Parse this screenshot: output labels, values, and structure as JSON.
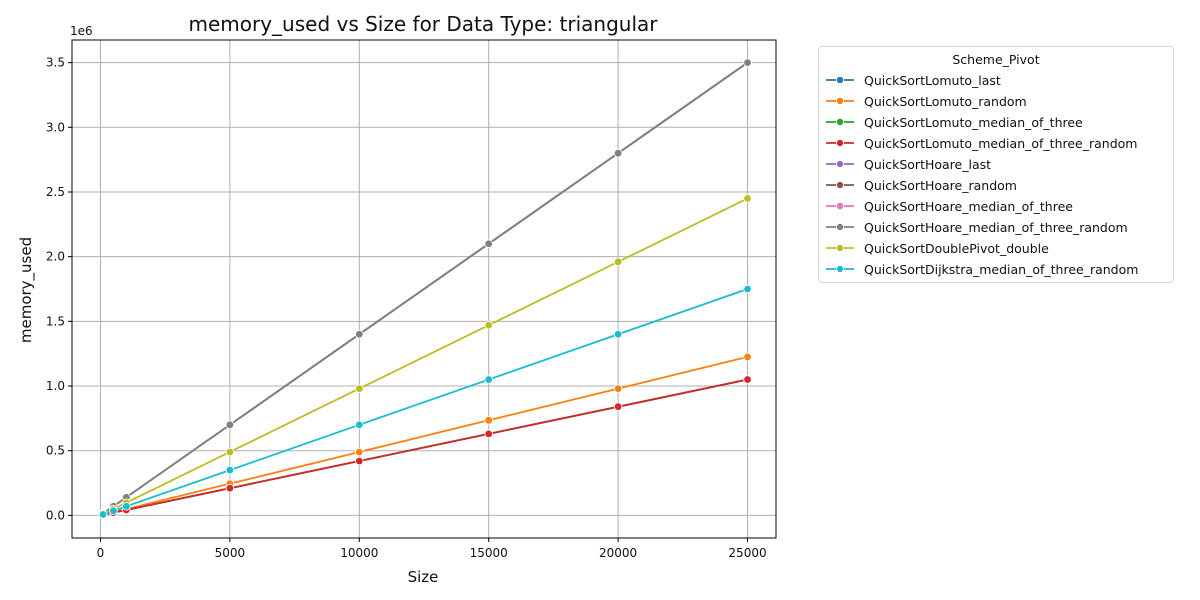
{
  "chart_data": {
    "type": "line",
    "title": "memory_used vs Size for Data Type: triangular",
    "xlabel": "Size",
    "ylabel": "memory_used",
    "y_offset_label": "1e6",
    "xlim": [
      -1100,
      26100
    ],
    "ylim": [
      -175000,
      3675000
    ],
    "x_ticks": [
      0,
      5000,
      10000,
      15000,
      20000,
      25000
    ],
    "x_tick_labels": [
      "0",
      "5000",
      "10000",
      "15000",
      "20000",
      "25000"
    ],
    "y_ticks": [
      0,
      500000,
      1000000,
      1500000,
      2000000,
      2500000,
      3000000,
      3500000
    ],
    "y_tick_labels": [
      "0.0",
      "0.5",
      "1.0",
      "1.5",
      "2.0",
      "2.5",
      "3.0",
      "3.5"
    ],
    "grid": true,
    "legend_title": "Scheme_Pivot",
    "legend_position": "outside-top-right",
    "x": [
      100,
      500,
      1000,
      5000,
      10000,
      15000,
      20000,
      25000
    ],
    "series": [
      {
        "name": "QuickSortLomuto_last",
        "color": "#1f77b4",
        "values": [
          4200,
          21000,
          42000,
          210000,
          420000,
          630000,
          840000,
          1050000
        ]
      },
      {
        "name": "QuickSortLomuto_random",
        "color": "#ff7f0e",
        "values": [
          4900,
          24500,
          49000,
          245000,
          490000,
          735000,
          980000,
          1225000
        ]
      },
      {
        "name": "QuickSortLomuto_median_of_three",
        "color": "#2ca02c",
        "values": [
          4200,
          21000,
          42000,
          210000,
          420000,
          630000,
          840000,
          1050000
        ]
      },
      {
        "name": "QuickSortLomuto_median_of_three_random",
        "color": "#d62728",
        "values": [
          4200,
          21000,
          42000,
          210000,
          420000,
          630000,
          840000,
          1050000
        ]
      },
      {
        "name": "QuickSortHoare_last",
        "color": "#9467bd",
        "values": [
          14000,
          70000,
          140000,
          700000,
          1400000,
          2100000,
          2800000,
          3500000
        ]
      },
      {
        "name": "QuickSortHoare_random",
        "color": "#8c564b",
        "values": [
          14000,
          70000,
          140000,
          700000,
          1400000,
          2100000,
          2800000,
          3500000
        ]
      },
      {
        "name": "QuickSortHoare_median_of_three",
        "color": "#e377c2",
        "values": [
          14000,
          70000,
          140000,
          700000,
          1400000,
          2100000,
          2800000,
          3500000
        ]
      },
      {
        "name": "QuickSortHoare_median_of_three_random",
        "color": "#7f7f7f",
        "values": [
          14000,
          70000,
          140000,
          700000,
          1400000,
          2100000,
          2800000,
          3500000
        ]
      },
      {
        "name": "QuickSortDoublePivot_double",
        "color": "#bcbd22",
        "values": [
          9800,
          49000,
          98000,
          490000,
          980000,
          1470000,
          1960000,
          2450000
        ]
      },
      {
        "name": "QuickSortDijkstra_median_of_three_random",
        "color": "#17becf",
        "values": [
          7000,
          35000,
          70000,
          350000,
          700000,
          1050000,
          1400000,
          1750000
        ]
      }
    ]
  }
}
